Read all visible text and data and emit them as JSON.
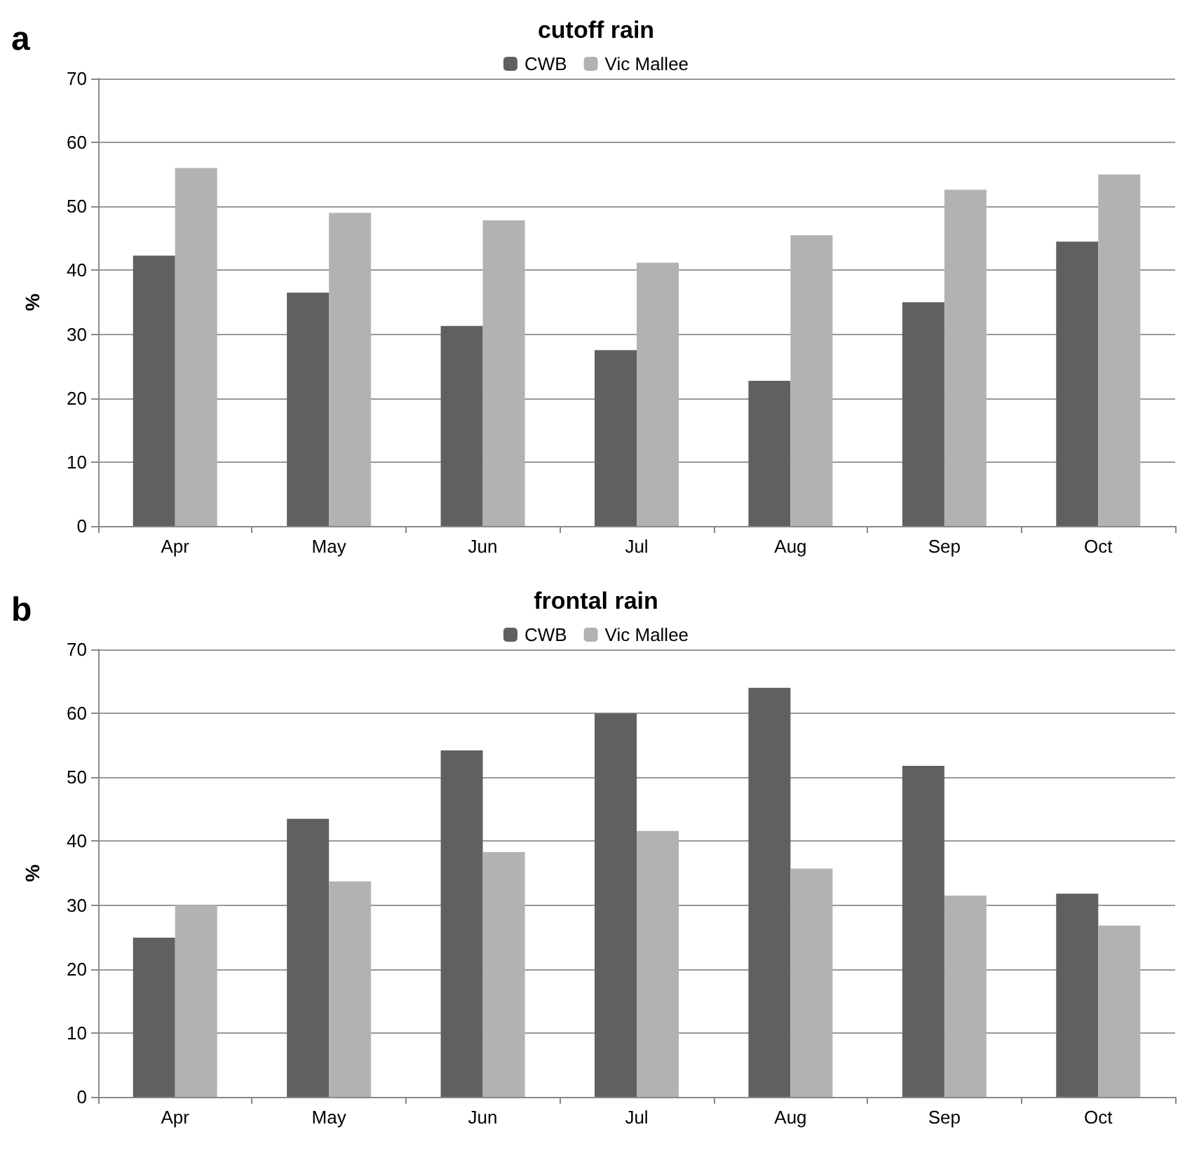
{
  "chart_data": [
    {
      "type": "bar",
      "title": "cutoff rain",
      "ylabel": "%",
      "annotations": [
        "a"
      ],
      "categories": [
        "Apr",
        "May",
        "Jun",
        "Jul",
        "Aug",
        "Sep",
        "Oct"
      ],
      "series": [
        {
          "name": "CWB",
          "color": "#606060",
          "values": [
            42.3,
            36.5,
            31.3,
            27.5,
            22.7,
            35,
            44.5
          ]
        },
        {
          "name": "Vic Mallee",
          "color": "#b2b2b2",
          "values": [
            56,
            49,
            47.8,
            41.2,
            45.5,
            52.6,
            55
          ]
        }
      ],
      "ylim": [
        0,
        70
      ],
      "yticks": [
        0,
        10,
        20,
        30,
        40,
        50,
        60,
        70
      ],
      "grid": "y",
      "legend": "top"
    },
    {
      "type": "bar",
      "title": "frontal rain",
      "ylabel": "%",
      "annotations": [
        "b"
      ],
      "categories": [
        "Apr",
        "May",
        "Jun",
        "Jul",
        "Aug",
        "Sep",
        "Oct"
      ],
      "series": [
        {
          "name": "CWB",
          "color": "#606060",
          "values": [
            24.9,
            43.5,
            54.2,
            60,
            64,
            51.8,
            31.8
          ]
        },
        {
          "name": "Vic Mallee",
          "color": "#b2b2b2",
          "values": [
            30,
            33.7,
            38.3,
            41.6,
            35.7,
            31.5,
            26.8
          ]
        }
      ],
      "ylim": [
        0,
        70
      ],
      "yticks": [
        0,
        10,
        20,
        30,
        40,
        50,
        60,
        70
      ],
      "grid": "y",
      "legend": "top"
    }
  ]
}
